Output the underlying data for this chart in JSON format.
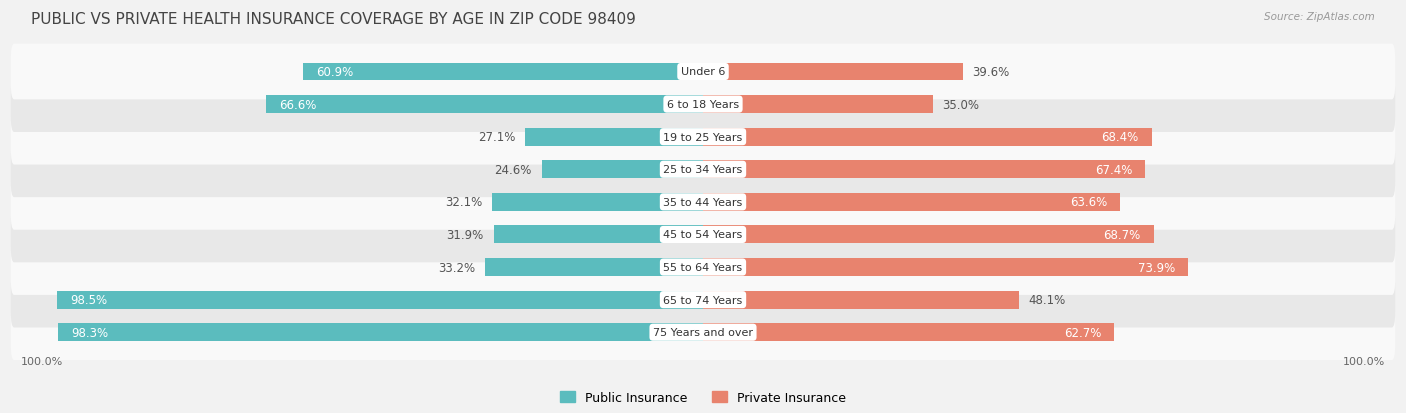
{
  "title": "PUBLIC VS PRIVATE HEALTH INSURANCE COVERAGE BY AGE IN ZIP CODE 98409",
  "source": "Source: ZipAtlas.com",
  "categories": [
    "Under 6",
    "6 to 18 Years",
    "19 to 25 Years",
    "25 to 34 Years",
    "35 to 44 Years",
    "45 to 54 Years",
    "55 to 64 Years",
    "65 to 74 Years",
    "75 Years and over"
  ],
  "public_values": [
    60.9,
    66.6,
    27.1,
    24.6,
    32.1,
    31.9,
    33.2,
    98.5,
    98.3
  ],
  "private_values": [
    39.6,
    35.0,
    68.4,
    67.4,
    63.6,
    68.7,
    73.9,
    48.1,
    62.7
  ],
  "public_color": "#5bbcbe",
  "private_color": "#e8836e",
  "bg_color": "#f2f2f2",
  "row_light": "#f9f9f9",
  "row_dark": "#e8e8e8",
  "label_white": "#ffffff",
  "label_dark": "#555555",
  "title_fontsize": 11,
  "bar_label_fontsize": 8.5,
  "cat_label_fontsize": 8,
  "legend_fontsize": 9,
  "axis_label_fontsize": 8
}
